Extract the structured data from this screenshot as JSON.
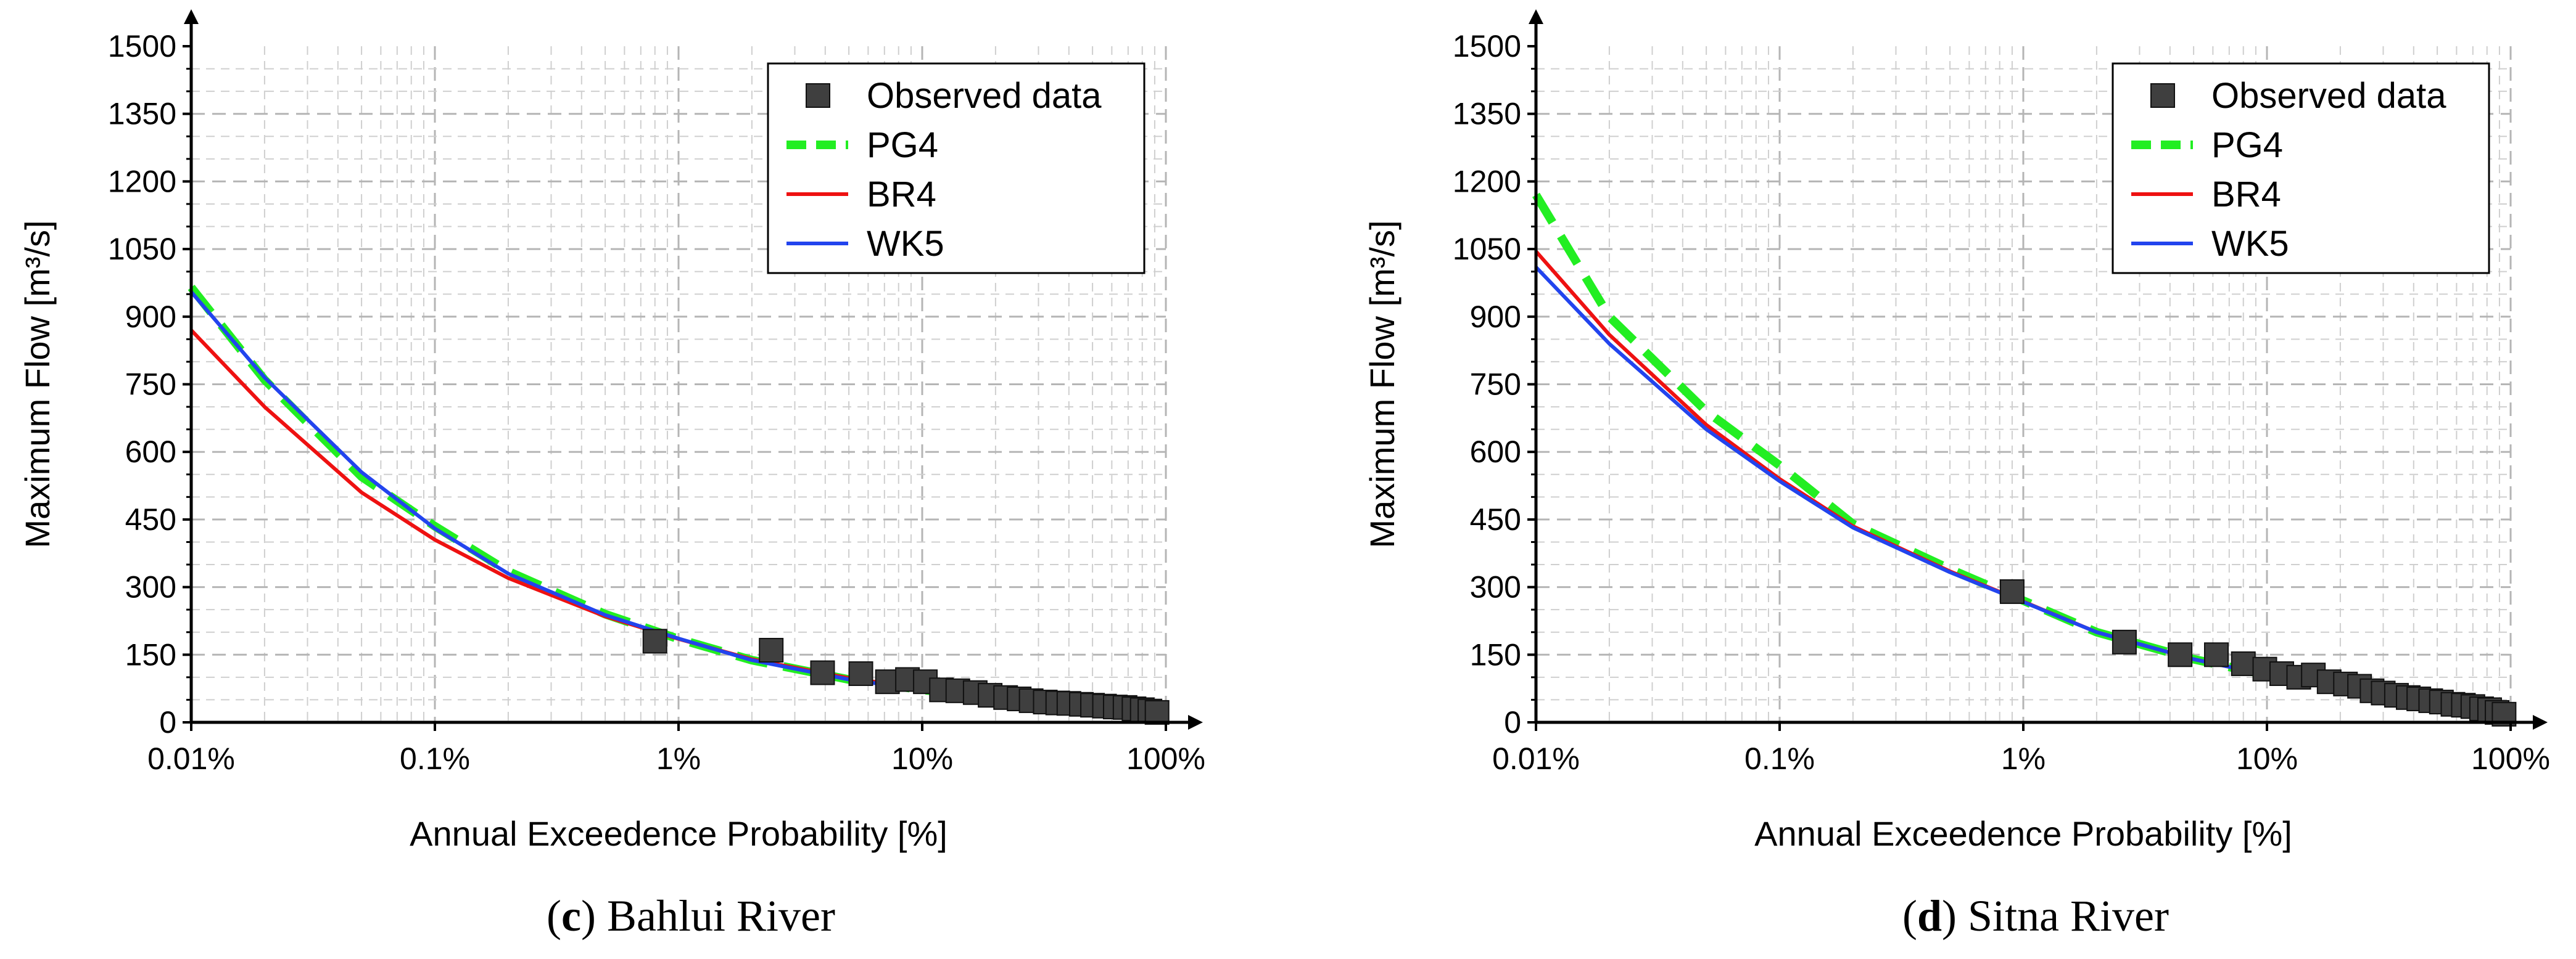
{
  "colors": {
    "observed": "#3f3f3f",
    "PG4": "#22ee22",
    "BR4": "#ee1111",
    "WK5": "#2244ee",
    "grid": "#cfcfcf",
    "axis": "#000000"
  },
  "chart_data": [
    {
      "type": "line",
      "caption": {
        "letter": "c",
        "open": "(",
        "close": ")",
        "name": " Bahlui River"
      },
      "xlabel": "Annual Exceedence Probability [%]",
      "ylabel": "Maximum Flow [m³/s]",
      "xscale": "log",
      "xlim": [
        0.01,
        100
      ],
      "ylim": [
        0,
        1500
      ],
      "xticks": [
        0.01,
        0.1,
        1,
        10,
        100
      ],
      "xtick_labels": [
        "0.01%",
        "0.1%",
        "1%",
        "10%",
        "100%"
      ],
      "yticks": [
        0,
        150,
        300,
        450,
        600,
        750,
        900,
        1050,
        1200,
        1350,
        1500
      ],
      "ytick_labels": [
        "0",
        "150",
        "300",
        "450",
        "600",
        "750",
        "900",
        "1050",
        "1200",
        "1350",
        "1500"
      ],
      "legend_position": "top-right",
      "legend": [
        "Observed data",
        "PG4",
        "BR4",
        "WK5"
      ],
      "series": [
        {
          "name": "Observed data",
          "kind": "markers",
          "x": [
            0.8,
            2.4,
            3.9,
            5.6,
            7.2,
            8.7,
            10.3,
            12,
            14,
            16.5,
            19,
            22,
            25,
            28,
            32,
            36,
            40,
            45,
            50,
            56,
            62,
            68,
            74,
            80,
            86,
            92
          ],
          "y": [
            180,
            160,
            110,
            108,
            90,
            95,
            90,
            72,
            70,
            66,
            60,
            55,
            52,
            48,
            45,
            43,
            42,
            40,
            38,
            36,
            34,
            33,
            30,
            28,
            25,
            22
          ]
        },
        {
          "name": "PG4",
          "kind": "dashed",
          "x": [
            0.01,
            0.02,
            0.05,
            0.1,
            0.2,
            0.5,
            1,
            2,
            5,
            10,
            20,
            50,
            100
          ],
          "y": [
            965,
            760,
            545,
            435,
            335,
            240,
            185,
            138,
            95,
            72,
            55,
            32,
            10
          ]
        },
        {
          "name": "BR4",
          "kind": "solid",
          "x": [
            0.01,
            0.02,
            0.05,
            0.1,
            0.2,
            0.5,
            1,
            2,
            5,
            10,
            20,
            50,
            100
          ],
          "y": [
            870,
            700,
            510,
            405,
            320,
            235,
            185,
            140,
            98,
            75,
            58,
            33,
            10
          ]
        },
        {
          "name": "WK5",
          "kind": "solid",
          "x": [
            0.01,
            0.02,
            0.05,
            0.1,
            0.2,
            0.5,
            1,
            2,
            5,
            10,
            20,
            50,
            100
          ],
          "y": [
            955,
            765,
            555,
            430,
            330,
            238,
            186,
            138,
            95,
            72,
            55,
            32,
            10
          ]
        }
      ]
    },
    {
      "type": "line",
      "caption": {
        "letter": "d",
        "open": "(",
        "close": ")",
        "name": " Sitna River"
      },
      "xlabel": "Annual Exceedence Probability [%]",
      "ylabel": "Maximum Flow [m³/s]",
      "xscale": "log",
      "xlim": [
        0.01,
        100
      ],
      "ylim": [
        0,
        1500
      ],
      "xticks": [
        0.01,
        0.1,
        1,
        10,
        100
      ],
      "xtick_labels": [
        "0.01%",
        "0.1%",
        "1%",
        "10%",
        "100%"
      ],
      "yticks": [
        0,
        150,
        300,
        450,
        600,
        750,
        900,
        1050,
        1200,
        1350,
        1500
      ],
      "ytick_labels": [
        "0",
        "150",
        "300",
        "450",
        "600",
        "750",
        "900",
        "1050",
        "1200",
        "1350",
        "1500"
      ],
      "legend_position": "top-right",
      "legend": [
        "Observed data",
        "PG4",
        "BR4",
        "WK5"
      ],
      "series": [
        {
          "name": "Observed data",
          "kind": "markers",
          "x": [
            0.9,
            2.6,
            4.4,
            6.2,
            8,
            9.8,
            11.5,
            13.5,
            15.5,
            18,
            21,
            24,
            27,
            30,
            34,
            38,
            42,
            47,
            52,
            58,
            64,
            70,
            76,
            82,
            88,
            94
          ],
          "y": [
            290,
            178,
            150,
            150,
            130,
            118,
            108,
            100,
            105,
            90,
            85,
            80,
            70,
            65,
            60,
            55,
            52,
            48,
            45,
            40,
            38,
            35,
            30,
            28,
            22,
            18
          ]
        },
        {
          "name": "PG4",
          "kind": "dashed",
          "x": [
            0.01,
            0.02,
            0.05,
            0.1,
            0.2,
            0.5,
            1,
            2,
            5,
            10,
            20,
            50,
            100
          ],
          "y": [
            1170,
            900,
            690,
            570,
            440,
            340,
            270,
            200,
            140,
            105,
            80,
            45,
            10
          ]
        },
        {
          "name": "BR4",
          "kind": "solid",
          "x": [
            0.01,
            0.02,
            0.05,
            0.1,
            0.2,
            0.5,
            1,
            2,
            5,
            10,
            20,
            50,
            100
          ],
          "y": [
            1045,
            860,
            660,
            540,
            435,
            335,
            268,
            200,
            140,
            105,
            80,
            45,
            10
          ]
        },
        {
          "name": "WK5",
          "kind": "solid",
          "x": [
            0.01,
            0.02,
            0.05,
            0.1,
            0.2,
            0.5,
            1,
            2,
            5,
            10,
            20,
            50,
            100
          ],
          "y": [
            1010,
            840,
            650,
            535,
            432,
            333,
            267,
            200,
            140,
            105,
            80,
            45,
            10
          ]
        }
      ]
    }
  ]
}
